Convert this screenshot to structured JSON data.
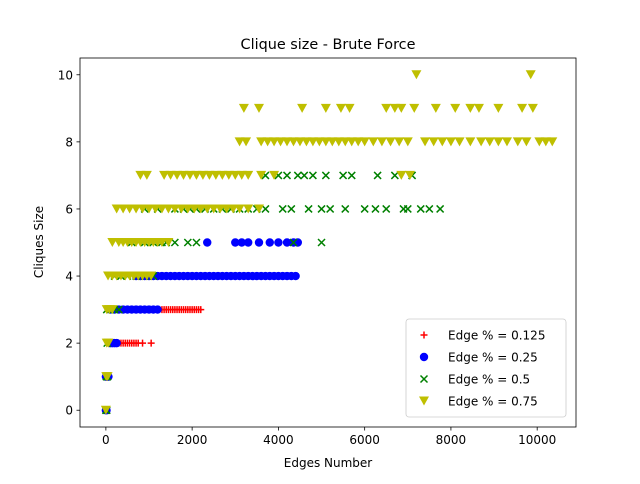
{
  "chart_data": {
    "type": "scatter",
    "title": "Clique size - Brute Force",
    "xlabel": "Edges Number",
    "ylabel": "Cliques Size",
    "xlim": [
      -600,
      10900
    ],
    "ylim": [
      -0.5,
      10.5
    ],
    "xticks": [
      0,
      2000,
      4000,
      6000,
      8000,
      10000
    ],
    "xtick_labels": [
      "0",
      "2000",
      "4000",
      "6000",
      "8000",
      "10000"
    ],
    "yticks": [
      0,
      2,
      4,
      6,
      8,
      10
    ],
    "ytick_labels": [
      "0",
      "2",
      "4",
      "6",
      "8",
      "10"
    ],
    "legend_position": "lower-right",
    "grid": false,
    "series": [
      {
        "name": "Edge % = 0.125",
        "marker": "plus",
        "color": "#ff0000",
        "points": [
          [
            0,
            0
          ],
          [
            5,
            0
          ],
          [
            10,
            1
          ],
          [
            20,
            1
          ],
          [
            30,
            1
          ],
          [
            50,
            1
          ],
          [
            60,
            2
          ],
          [
            100,
            2
          ],
          [
            150,
            2
          ],
          [
            200,
            2
          ],
          [
            250,
            2
          ],
          [
            300,
            2
          ],
          [
            350,
            2
          ],
          [
            400,
            2
          ],
          [
            450,
            2
          ],
          [
            500,
            2
          ],
          [
            550,
            2
          ],
          [
            600,
            2
          ],
          [
            650,
            2
          ],
          [
            700,
            2
          ],
          [
            750,
            2
          ],
          [
            850,
            2
          ],
          [
            1050,
            2
          ],
          [
            600,
            3
          ],
          [
            700,
            3
          ],
          [
            800,
            3
          ],
          [
            900,
            3
          ],
          [
            1000,
            3
          ],
          [
            1100,
            3
          ],
          [
            1200,
            3
          ],
          [
            1300,
            3
          ],
          [
            1350,
            3
          ],
          [
            1400,
            3
          ],
          [
            1450,
            3
          ],
          [
            1500,
            3
          ],
          [
            1550,
            3
          ],
          [
            1600,
            3
          ],
          [
            1650,
            3
          ],
          [
            1700,
            3
          ],
          [
            1750,
            3
          ],
          [
            1800,
            3
          ],
          [
            1850,
            3
          ],
          [
            1900,
            3
          ],
          [
            1950,
            3
          ],
          [
            2000,
            3
          ],
          [
            2050,
            3
          ],
          [
            2100,
            3
          ],
          [
            2150,
            3
          ],
          [
            2200,
            3
          ]
        ]
      },
      {
        "name": "Edge % = 0.25",
        "marker": "circle",
        "color": "#0000ff",
        "points": [
          [
            0,
            0
          ],
          [
            15,
            0
          ],
          [
            0,
            1
          ],
          [
            30,
            1
          ],
          [
            60,
            1
          ],
          [
            100,
            2
          ],
          [
            150,
            2
          ],
          [
            200,
            2
          ],
          [
            250,
            2
          ],
          [
            100,
            3
          ],
          [
            200,
            3
          ],
          [
            300,
            3
          ],
          [
            400,
            3
          ],
          [
            500,
            3
          ],
          [
            600,
            3
          ],
          [
            700,
            3
          ],
          [
            800,
            3
          ],
          [
            900,
            3
          ],
          [
            1000,
            3
          ],
          [
            1100,
            3
          ],
          [
            1200,
            3
          ],
          [
            700,
            4
          ],
          [
            800,
            4
          ],
          [
            900,
            4
          ],
          [
            1000,
            4
          ],
          [
            1100,
            4
          ],
          [
            1200,
            4
          ],
          [
            1300,
            4
          ],
          [
            1400,
            4
          ],
          [
            1500,
            4
          ],
          [
            1600,
            4
          ],
          [
            1700,
            4
          ],
          [
            1800,
            4
          ],
          [
            1900,
            4
          ],
          [
            2000,
            4
          ],
          [
            2100,
            4
          ],
          [
            2200,
            4
          ],
          [
            2300,
            4
          ],
          [
            2400,
            4
          ],
          [
            2500,
            4
          ],
          [
            2600,
            4
          ],
          [
            2700,
            4
          ],
          [
            2800,
            4
          ],
          [
            2900,
            4
          ],
          [
            3000,
            4
          ],
          [
            3100,
            4
          ],
          [
            3200,
            4
          ],
          [
            3300,
            4
          ],
          [
            3400,
            4
          ],
          [
            3500,
            4
          ],
          [
            3600,
            4
          ],
          [
            3700,
            4
          ],
          [
            3800,
            4
          ],
          [
            3900,
            4
          ],
          [
            4000,
            4
          ],
          [
            4100,
            4
          ],
          [
            4200,
            4
          ],
          [
            4300,
            4
          ],
          [
            4400,
            4
          ],
          [
            2350,
            5
          ],
          [
            3000,
            5
          ],
          [
            3150,
            5
          ],
          [
            3300,
            5
          ],
          [
            3550,
            5
          ],
          [
            3800,
            5
          ],
          [
            4000,
            5
          ],
          [
            4200,
            5
          ],
          [
            4350,
            5
          ],
          [
            4450,
            5
          ]
        ]
      },
      {
        "name": "Edge % = 0.5",
        "marker": "x",
        "color": "#008000",
        "points": [
          [
            0,
            0
          ],
          [
            20,
            0
          ],
          [
            10,
            1
          ],
          [
            40,
            1
          ],
          [
            30,
            2
          ],
          [
            20,
            3
          ],
          [
            100,
            3
          ],
          [
            200,
            3
          ],
          [
            300,
            3
          ],
          [
            200,
            4
          ],
          [
            350,
            4
          ],
          [
            500,
            4
          ],
          [
            700,
            4
          ],
          [
            900,
            4
          ],
          [
            1100,
            4
          ],
          [
            600,
            5
          ],
          [
            900,
            5
          ],
          [
            1100,
            5
          ],
          [
            1300,
            5
          ],
          [
            1400,
            5
          ],
          [
            1600,
            5
          ],
          [
            1900,
            5
          ],
          [
            2100,
            5
          ],
          [
            4350,
            5
          ],
          [
            5000,
            5
          ],
          [
            900,
            6
          ],
          [
            1200,
            6
          ],
          [
            1600,
            6
          ],
          [
            1800,
            6
          ],
          [
            1950,
            6
          ],
          [
            2100,
            6
          ],
          [
            2300,
            6
          ],
          [
            2500,
            6
          ],
          [
            2700,
            6
          ],
          [
            2900,
            6
          ],
          [
            3100,
            6
          ],
          [
            3300,
            6
          ],
          [
            3500,
            6
          ],
          [
            3700,
            6
          ],
          [
            4100,
            6
          ],
          [
            4300,
            6
          ],
          [
            4700,
            6
          ],
          [
            5000,
            6
          ],
          [
            5200,
            6
          ],
          [
            5550,
            6
          ],
          [
            6000,
            6
          ],
          [
            6250,
            6
          ],
          [
            6500,
            6
          ],
          [
            6900,
            6
          ],
          [
            7000,
            6
          ],
          [
            7300,
            6
          ],
          [
            7500,
            6
          ],
          [
            7750,
            6
          ],
          [
            3700,
            7
          ],
          [
            4000,
            7
          ],
          [
            4200,
            7
          ],
          [
            4450,
            7
          ],
          [
            4600,
            7
          ],
          [
            4800,
            7
          ],
          [
            5100,
            7
          ],
          [
            5500,
            7
          ],
          [
            5700,
            7
          ],
          [
            6300,
            7
          ],
          [
            6700,
            7
          ],
          [
            7100,
            7
          ]
        ]
      },
      {
        "name": "Edge % = 0.75",
        "marker": "triangle-down",
        "color": "#bfbf00",
        "points": [
          [
            0,
            0
          ],
          [
            10,
            1
          ],
          [
            40,
            1
          ],
          [
            20,
            2
          ],
          [
            60,
            2
          ],
          [
            20,
            3
          ],
          [
            80,
            3
          ],
          [
            150,
            3
          ],
          [
            50,
            4
          ],
          [
            150,
            4
          ],
          [
            250,
            4
          ],
          [
            350,
            4
          ],
          [
            450,
            4
          ],
          [
            550,
            4
          ],
          [
            650,
            4
          ],
          [
            750,
            4
          ],
          [
            850,
            4
          ],
          [
            950,
            4
          ],
          [
            1050,
            4
          ],
          [
            150,
            5
          ],
          [
            300,
            5
          ],
          [
            400,
            5
          ],
          [
            500,
            5
          ],
          [
            600,
            5
          ],
          [
            700,
            5
          ],
          [
            800,
            5
          ],
          [
            900,
            5
          ],
          [
            1000,
            5
          ],
          [
            1100,
            5
          ],
          [
            1200,
            5
          ],
          [
            1300,
            5
          ],
          [
            1450,
            5
          ],
          [
            250,
            6
          ],
          [
            400,
            6
          ],
          [
            550,
            6
          ],
          [
            700,
            6
          ],
          [
            850,
            6
          ],
          [
            1000,
            6
          ],
          [
            1150,
            6
          ],
          [
            1300,
            6
          ],
          [
            1450,
            6
          ],
          [
            1600,
            6
          ],
          [
            1750,
            6
          ],
          [
            1900,
            6
          ],
          [
            2050,
            6
          ],
          [
            2200,
            6
          ],
          [
            2350,
            6
          ],
          [
            2500,
            6
          ],
          [
            2650,
            6
          ],
          [
            2800,
            6
          ],
          [
            2950,
            6
          ],
          [
            3100,
            6
          ],
          [
            3300,
            6
          ],
          [
            3550,
            6
          ],
          [
            800,
            7
          ],
          [
            950,
            7
          ],
          [
            1350,
            7
          ],
          [
            1500,
            7
          ],
          [
            1650,
            7
          ],
          [
            1800,
            7
          ],
          [
            1950,
            7
          ],
          [
            2100,
            7
          ],
          [
            2250,
            7
          ],
          [
            2400,
            7
          ],
          [
            2550,
            7
          ],
          [
            2700,
            7
          ],
          [
            2850,
            7
          ],
          [
            3000,
            7
          ],
          [
            3150,
            7
          ],
          [
            3300,
            7
          ],
          [
            3600,
            7
          ],
          [
            3900,
            7
          ],
          [
            6850,
            7
          ],
          [
            7050,
            7
          ],
          [
            3100,
            8
          ],
          [
            3250,
            8
          ],
          [
            3600,
            8
          ],
          [
            3750,
            8
          ],
          [
            3900,
            8
          ],
          [
            4050,
            8
          ],
          [
            4200,
            8
          ],
          [
            4350,
            8
          ],
          [
            4500,
            8
          ],
          [
            4650,
            8
          ],
          [
            4800,
            8
          ],
          [
            4950,
            8
          ],
          [
            5100,
            8
          ],
          [
            5250,
            8
          ],
          [
            5400,
            8
          ],
          [
            5550,
            8
          ],
          [
            5700,
            8
          ],
          [
            5850,
            8
          ],
          [
            6000,
            8
          ],
          [
            6200,
            8
          ],
          [
            6400,
            8
          ],
          [
            6600,
            8
          ],
          [
            6800,
            8
          ],
          [
            7000,
            8
          ],
          [
            7400,
            8
          ],
          [
            7600,
            8
          ],
          [
            7800,
            8
          ],
          [
            8000,
            8
          ],
          [
            8200,
            8
          ],
          [
            8450,
            8
          ],
          [
            8700,
            8
          ],
          [
            8900,
            8
          ],
          [
            9100,
            8
          ],
          [
            9300,
            8
          ],
          [
            9550,
            8
          ],
          [
            9750,
            8
          ],
          [
            10050,
            8
          ],
          [
            10200,
            8
          ],
          [
            10350,
            8
          ],
          [
            3200,
            9
          ],
          [
            3550,
            9
          ],
          [
            4550,
            9
          ],
          [
            5100,
            9
          ],
          [
            5450,
            9
          ],
          [
            5650,
            9
          ],
          [
            6500,
            9
          ],
          [
            6700,
            9
          ],
          [
            6850,
            9
          ],
          [
            7150,
            9
          ],
          [
            7650,
            9
          ],
          [
            8100,
            9
          ],
          [
            8450,
            9
          ],
          [
            8650,
            9
          ],
          [
            9100,
            9
          ],
          [
            9650,
            9
          ],
          [
            9900,
            9
          ],
          [
            7200,
            10
          ],
          [
            9850,
            10
          ]
        ]
      }
    ]
  }
}
